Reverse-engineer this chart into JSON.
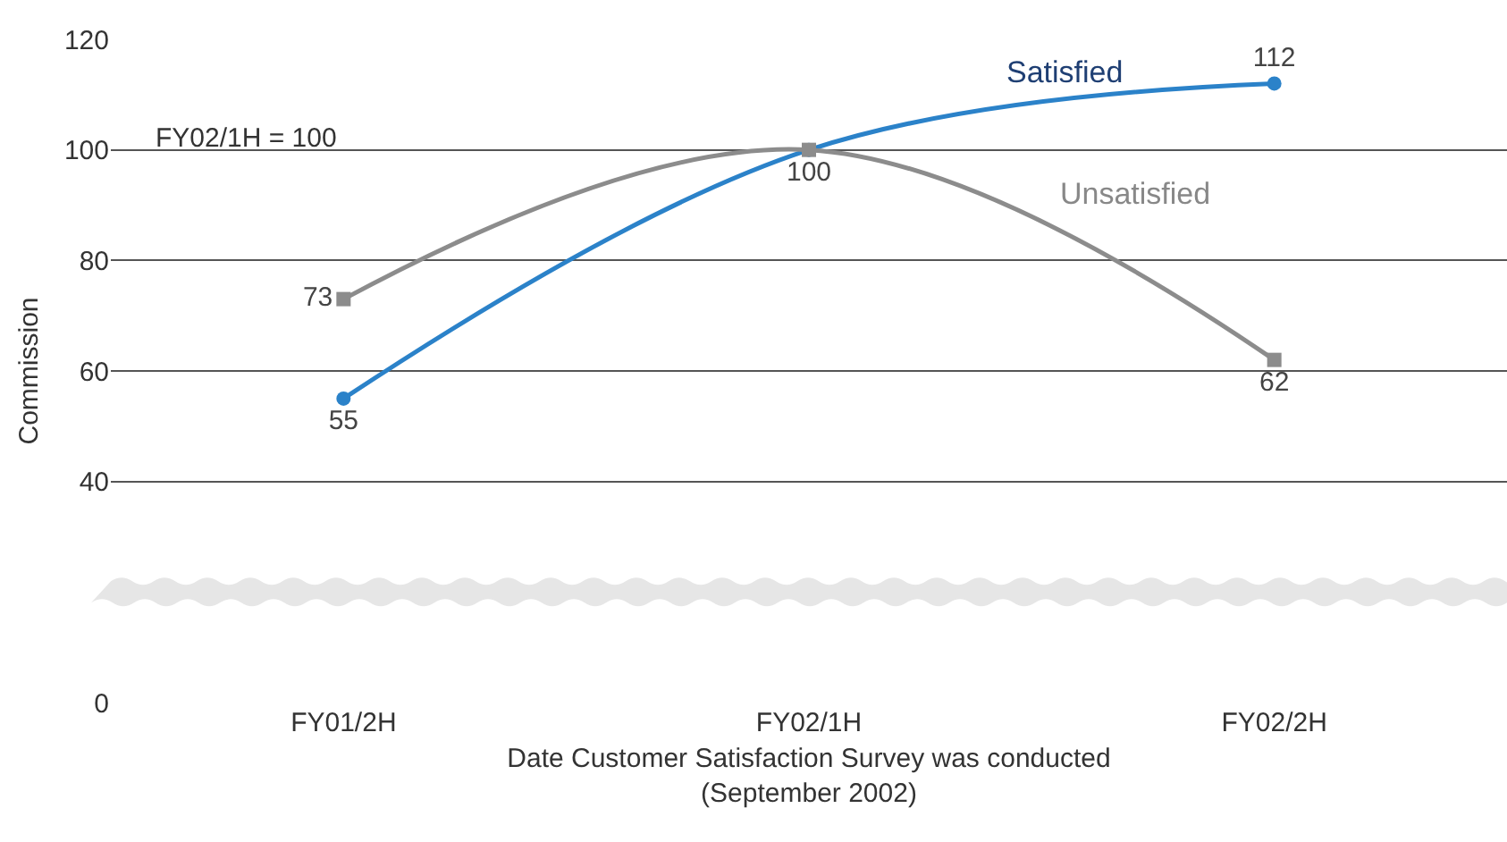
{
  "chart_data": {
    "type": "line",
    "xlabel": "Date Customer Satisfaction Survey was conducted\n(September 2002)",
    "ylabel": "Commission",
    "categories": [
      "FY01/2H",
      "FY02/1H",
      "FY02/2H"
    ],
    "series": [
      {
        "name": "Satisfied",
        "color": "#2b82c9",
        "values": [
          55,
          100,
          112
        ],
        "value_labels": [
          "55",
          "100",
          "112"
        ],
        "marker": "circle"
      },
      {
        "name": "Unsatisfied",
        "color": "#8c8c8c",
        "values": [
          73,
          100,
          62
        ],
        "value_labels": [
          "73",
          null,
          "62"
        ],
        "marker": "square"
      }
    ],
    "ylim": [
      0,
      120
    ],
    "yticks": [
      0,
      40,
      60,
      80,
      100,
      120
    ],
    "grid": "y",
    "legend": false,
    "line_style": "solid",
    "annotations": [
      "FY02/1H = 100"
    ]
  }
}
